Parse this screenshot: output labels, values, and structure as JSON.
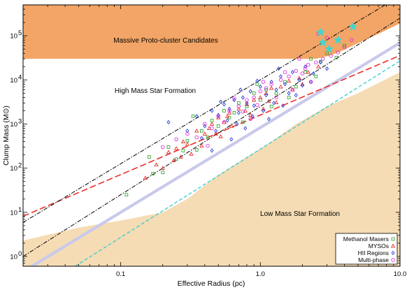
{
  "chart_data": {
    "type": "scatter",
    "xscale": "log",
    "yscale": "log",
    "xlim": [
      0.02,
      10
    ],
    "ylim": [
      0.6,
      500000
    ],
    "xlabel": "Effective Radius (pc)",
    "ylabel": "Clump Mass (M⊙)",
    "x_tick_labels": [
      {
        "value": 0.1,
        "label": "0.1"
      },
      {
        "value": 1,
        "label": "1.0"
      },
      {
        "value": 10,
        "label": "10.0"
      }
    ],
    "y_tick_labels": [
      {
        "value": 1,
        "base": "10",
        "exp": "0"
      },
      {
        "value": 10,
        "base": "10",
        "exp": "1"
      },
      {
        "value": 100,
        "base": "10",
        "exp": "2"
      },
      {
        "value": 1000,
        "base": "10",
        "exp": "3"
      },
      {
        "value": 10000,
        "base": "10",
        "exp": "4"
      },
      {
        "value": 100000,
        "base": "10",
        "exp": "5"
      }
    ],
    "region_labels": {
      "massive": "Massive Proto-cluster Candidates",
      "high": "High Mass Star Formation",
      "low": "Low Mass Star Formation"
    },
    "colors": {
      "massive_region": "#f2a566",
      "low_region": "#f5dcb4",
      "red_dashed": "#e8302a",
      "lavender_line": "#c9c9ec",
      "cyan_dashed": "#33cccc",
      "black_dashdot": "#000000",
      "star_marker": "#40d6d0"
    },
    "series": [
      {
        "name": "Methanol Masers",
        "marker": "square",
        "color": "#3caa3c",
        "points": [
          [
            0.11,
            25
          ],
          [
            0.17,
            75
          ],
          [
            0.22,
            300
          ],
          [
            0.25,
            160
          ],
          [
            0.3,
            420
          ],
          [
            0.35,
            260
          ],
          [
            0.38,
            700
          ],
          [
            0.45,
            1200
          ],
          [
            0.5,
            900
          ],
          [
            0.55,
            2000
          ],
          [
            0.6,
            1400
          ],
          [
            0.7,
            3000
          ],
          [
            0.8,
            2500
          ],
          [
            0.9,
            5000
          ],
          [
            1.0,
            3500
          ],
          [
            1.1,
            6000
          ],
          [
            1.3,
            5000
          ],
          [
            1.5,
            9000
          ],
          [
            1.8,
            7000
          ],
          [
            2.1,
            15000
          ],
          [
            2.5,
            12000
          ],
          [
            2.7,
            26000
          ],
          [
            3.0,
            40000
          ],
          [
            3.5,
            32000
          ],
          [
            4.0,
            60000
          ],
          [
            0.16,
            180
          ],
          [
            0.28,
            250
          ],
          [
            0.42,
            500
          ],
          [
            0.65,
            1800
          ],
          [
            1.2,
            2500
          ],
          [
            0.2,
            80
          ],
          [
            0.75,
            1100
          ],
          [
            1.6,
            4000
          ],
          [
            2.3,
            30000
          ],
          [
            0.33,
            1500
          ],
          [
            0.95,
            8000
          ]
        ]
      },
      {
        "name": "MYSOs",
        "marker": "triangle",
        "color": "#e8302a",
        "points": [
          [
            0.15,
            60
          ],
          [
            0.18,
            120
          ],
          [
            0.2,
            100
          ],
          [
            0.22,
            230
          ],
          [
            0.25,
            280
          ],
          [
            0.28,
            400
          ],
          [
            0.3,
            350
          ],
          [
            0.35,
            700
          ],
          [
            0.4,
            600
          ],
          [
            0.45,
            1000
          ],
          [
            0.5,
            1400
          ],
          [
            0.55,
            1100
          ],
          [
            0.6,
            1800
          ],
          [
            0.7,
            2200
          ],
          [
            0.8,
            2800
          ],
          [
            0.9,
            3500
          ],
          [
            1.0,
            4000
          ],
          [
            1.1,
            5000
          ],
          [
            1.2,
            6500
          ],
          [
            1.4,
            7000
          ],
          [
            1.6,
            9500
          ],
          [
            1.9,
            11000
          ],
          [
            2.2,
            15000
          ],
          [
            2.6,
            20000
          ],
          [
            0.32,
            210
          ],
          [
            0.38,
            320
          ],
          [
            0.48,
            600
          ],
          [
            0.62,
            900
          ],
          [
            0.85,
            1600
          ],
          [
            1.05,
            2200
          ],
          [
            1.3,
            3100
          ],
          [
            0.24,
            150
          ],
          [
            0.43,
            800
          ],
          [
            0.58,
            1500
          ],
          [
            0.78,
            2000
          ],
          [
            1.15,
            3300
          ],
          [
            1.7,
            6000
          ],
          [
            2.0,
            8000
          ],
          [
            0.27,
            180
          ],
          [
            0.52,
            520
          ]
        ]
      },
      {
        "name": "HII Regions",
        "marker": "diamond",
        "color": "#2a3fd8",
        "points": [
          [
            0.22,
            1100
          ],
          [
            0.3,
            700
          ],
          [
            0.35,
            1500
          ],
          [
            0.4,
            900
          ],
          [
            0.45,
            2000
          ],
          [
            0.5,
            1600
          ],
          [
            0.55,
            2800
          ],
          [
            0.6,
            2200
          ],
          [
            0.65,
            3500
          ],
          [
            0.7,
            1800
          ],
          [
            0.75,
            4000
          ],
          [
            0.8,
            3000
          ],
          [
            0.85,
            5500
          ],
          [
            0.9,
            2600
          ],
          [
            1.0,
            7000
          ],
          [
            1.1,
            4500
          ],
          [
            1.2,
            9000
          ],
          [
            1.3,
            6000
          ],
          [
            1.4,
            12000
          ],
          [
            1.5,
            8000
          ],
          [
            1.7,
            15000
          ],
          [
            1.9,
            10000
          ],
          [
            2.1,
            20000
          ],
          [
            2.4,
            14000
          ],
          [
            2.7,
            25000
          ],
          [
            3.0,
            18000
          ],
          [
            0.38,
            480
          ],
          [
            0.48,
            700
          ],
          [
            0.58,
            1200
          ],
          [
            0.68,
            1000
          ],
          [
            0.88,
            1500
          ],
          [
            1.05,
            2000
          ],
          [
            1.25,
            3000
          ],
          [
            1.6,
            5000
          ],
          [
            2.0,
            7500
          ],
          [
            0.52,
            3200
          ],
          [
            0.72,
            6000
          ],
          [
            0.95,
            9500
          ],
          [
            0.62,
            450
          ],
          [
            0.78,
            800
          ],
          [
            1.15,
            1300
          ],
          [
            1.45,
            2600
          ],
          [
            1.8,
            4500
          ],
          [
            2.3,
            9000
          ],
          [
            0.45,
            250
          ],
          [
            1.35,
            18000
          ]
        ]
      },
      {
        "name": "Multi-phase",
        "marker": "circle",
        "color": "#e030d8",
        "points": [
          [
            0.2,
            300
          ],
          [
            0.25,
            450
          ],
          [
            0.3,
            600
          ],
          [
            0.35,
            500
          ],
          [
            0.4,
            1000
          ],
          [
            0.45,
            800
          ],
          [
            0.5,
            1500
          ],
          [
            0.6,
            2000
          ],
          [
            0.7,
            2500
          ],
          [
            0.8,
            3500
          ],
          [
            0.9,
            4000
          ],
          [
            1.0,
            5500
          ],
          [
            1.1,
            6500
          ],
          [
            1.2,
            8000
          ],
          [
            1.4,
            10000
          ],
          [
            1.6,
            12000
          ],
          [
            1.8,
            16000
          ],
          [
            2.0,
            14000
          ],
          [
            2.2,
            22000
          ],
          [
            2.5,
            25000
          ],
          [
            2.8,
            30000
          ],
          [
            3.2,
            35000
          ],
          [
            3.6,
            42000
          ],
          [
            4.0,
            55000
          ],
          [
            4.5,
            80000
          ],
          [
            2.6,
            110000
          ],
          [
            3.0,
            90000
          ],
          [
            0.55,
            1100
          ],
          [
            0.75,
            1900
          ],
          [
            0.95,
            2700
          ],
          [
            1.3,
            4000
          ],
          [
            1.7,
            6000
          ],
          [
            2.3,
            9000
          ],
          [
            0.65,
            3800
          ],
          [
            1.05,
            9000
          ],
          [
            1.5,
            15000
          ],
          [
            2.1,
            18000
          ],
          [
            0.42,
            320
          ],
          [
            0.85,
            1300
          ],
          [
            1.9,
            30000
          ]
        ]
      }
    ],
    "highlight_points": {
      "marker": "star",
      "color": "#40d6d0",
      "points": [
        [
          2.7,
          120000
        ],
        [
          2.8,
          70000
        ],
        [
          3.6,
          80000
        ],
        [
          4.6,
          160000
        ],
        [
          3.1,
          50000
        ]
      ]
    },
    "legend": {
      "placement": "bottom-right",
      "entries": [
        "Methanol Masers",
        "MYSOs",
        "HII Regions",
        "Multi-phase"
      ]
    }
  }
}
